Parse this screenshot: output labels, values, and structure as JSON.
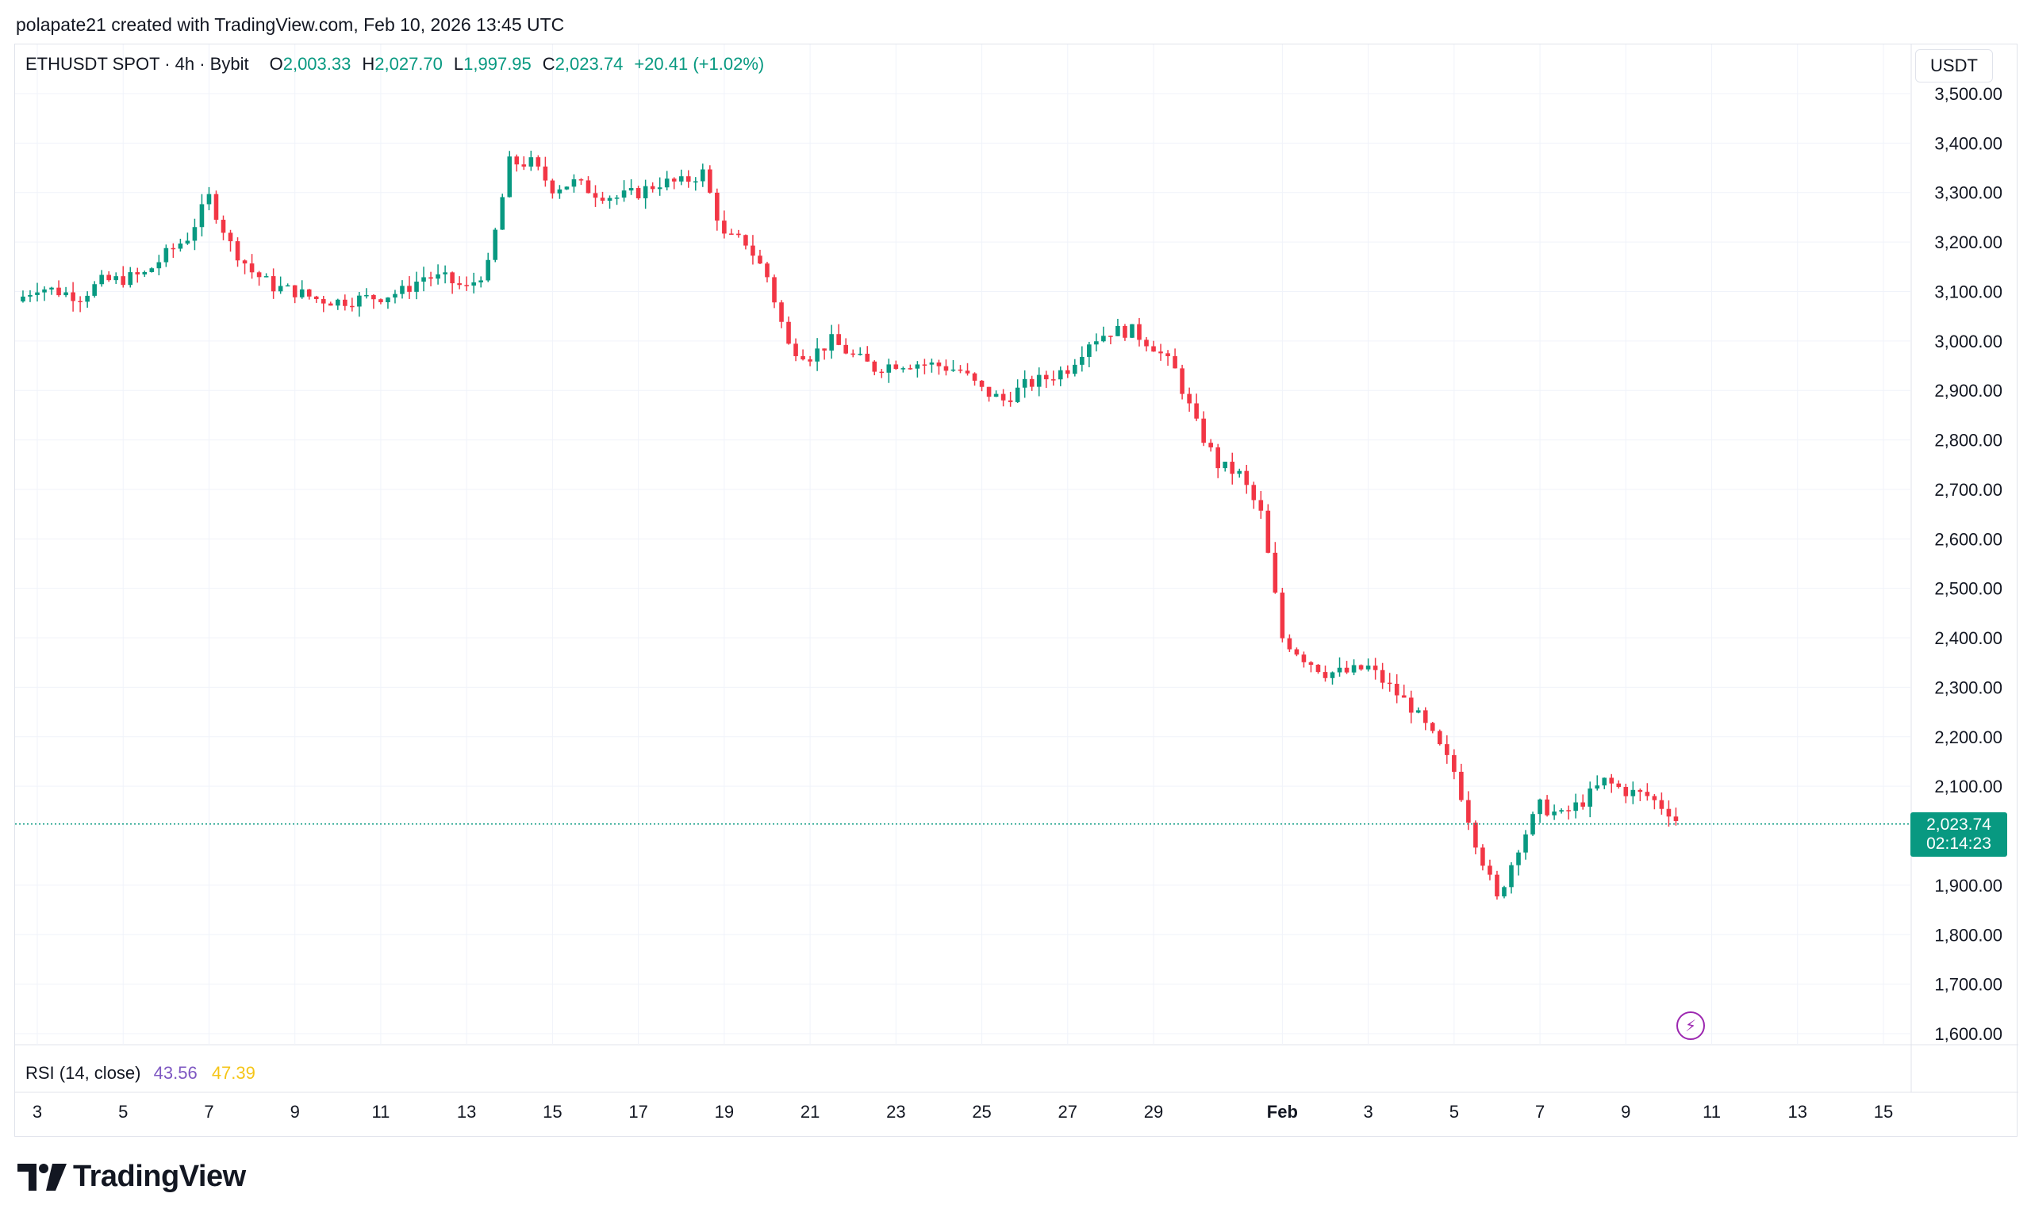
{
  "caption": "polapate21 created with TradingView.com, Feb 10, 2026 13:45 UTC",
  "legend": {
    "symbol": "ETHUSDT SPOT · 4h · Bybit",
    "open_label": "O",
    "open": "2,003.33",
    "high_label": "H",
    "high": "2,027.70",
    "low_label": "L",
    "low": "1,997.95",
    "close_label": "C",
    "close": "2,023.74",
    "change": "+20.41 (+1.02%)"
  },
  "currency_button": "USDT",
  "price_badge": {
    "price": "2,023.74",
    "countdown": "02:14:23"
  },
  "rsi_legend": {
    "label": "RSI (14, close)",
    "value": "43.56",
    "ma_value": "47.39"
  },
  "brand": {
    "text": "TradingView"
  },
  "icons": {
    "flash": "lightning-bolt-icon",
    "logo": "tradingview-logo-icon"
  },
  "colors": {
    "up": "#089981",
    "down": "#f23645",
    "grid": "#f0f3fa",
    "rsi_line": "#7e57c2",
    "rsi_ma": "#f5c518"
  },
  "chart_data": {
    "type": "candlestick",
    "timeframe": "4h",
    "ylim": [
      1600,
      3500
    ],
    "y_ticks": [
      "3,500.00",
      "3,400.00",
      "3,300.00",
      "3,200.00",
      "3,100.00",
      "3,000.00",
      "2,900.00",
      "2,800.00",
      "2,700.00",
      "2,600.00",
      "2,500.00",
      "2,400.00",
      "2,300.00",
      "2,200.00",
      "2,100.00",
      "1,900.00",
      "1,800.00",
      "1,700.00",
      "1,600.00"
    ],
    "y_tick_values": [
      3500,
      3400,
      3300,
      3200,
      3100,
      3000,
      2900,
      2800,
      2700,
      2600,
      2500,
      2400,
      2300,
      2200,
      2100,
      1900,
      1800,
      1700,
      1600
    ],
    "x_ticks": [
      {
        "label": "3",
        "day": 3
      },
      {
        "label": "5",
        "day": 5
      },
      {
        "label": "7",
        "day": 7
      },
      {
        "label": "9",
        "day": 9
      },
      {
        "label": "11",
        "day": 11
      },
      {
        "label": "13",
        "day": 13
      },
      {
        "label": "15",
        "day": 15
      },
      {
        "label": "17",
        "day": 17
      },
      {
        "label": "19",
        "day": 19
      },
      {
        "label": "21",
        "day": 21
      },
      {
        "label": "23",
        "day": 23
      },
      {
        "label": "25",
        "day": 25
      },
      {
        "label": "27",
        "day": 27
      },
      {
        "label": "29",
        "day": 29
      },
      {
        "label": "Feb",
        "day": 32,
        "bold": true
      },
      {
        "label": "3",
        "day": 34
      },
      {
        "label": "5",
        "day": 36
      },
      {
        "label": "7",
        "day": 38
      },
      {
        "label": "9",
        "day": 40
      },
      {
        "label": "11",
        "day": 42
      },
      {
        "label": "13",
        "day": 44
      },
      {
        "label": "15",
        "day": 46
      }
    ],
    "x_day_range": [
      2.5,
      47.5
    ],
    "last_price": 2023.74,
    "close_path": [
      [
        2.5,
        3080
      ],
      [
        3,
        3110
      ],
      [
        3.5,
        3100
      ],
      [
        4,
        3090
      ],
      [
        4.5,
        3120
      ],
      [
        5,
        3125
      ],
      [
        5.5,
        3135
      ],
      [
        6,
        3175
      ],
      [
        6.5,
        3210
      ],
      [
        7,
        3290
      ],
      [
        7.5,
        3195
      ],
      [
        8,
        3140
      ],
      [
        8.5,
        3110
      ],
      [
        9,
        3100
      ],
      [
        9.5,
        3085
      ],
      [
        10,
        3080
      ],
      [
        10.5,
        3085
      ],
      [
        11,
        3090
      ],
      [
        11.5,
        3100
      ],
      [
        12,
        3130
      ],
      [
        12.5,
        3125
      ],
      [
        13,
        3105
      ],
      [
        13.5,
        3150
      ],
      [
        14,
        3360
      ],
      [
        14.5,
        3360
      ],
      [
        15,
        3310
      ],
      [
        15.5,
        3320
      ],
      [
        16,
        3300
      ],
      [
        16.5,
        3290
      ],
      [
        17,
        3300
      ],
      [
        17.5,
        3320
      ],
      [
        18,
        3320
      ],
      [
        18.5,
        3340
      ],
      [
        19,
        3210
      ],
      [
        19.5,
        3200
      ],
      [
        20,
        3130
      ],
      [
        20.5,
        2990
      ],
      [
        21,
        2970
      ],
      [
        21.5,
        3000
      ],
      [
        22,
        2970
      ],
      [
        22.5,
        2945
      ],
      [
        23,
        2955
      ],
      [
        23.5,
        2955
      ],
      [
        24,
        2950
      ],
      [
        24.5,
        2940
      ],
      [
        25,
        2900
      ],
      [
        25.5,
        2880
      ],
      [
        26,
        2910
      ],
      [
        26.5,
        2925
      ],
      [
        27,
        2945
      ],
      [
        27.5,
        3000
      ],
      [
        28,
        3020
      ],
      [
        28.5,
        3020
      ],
      [
        29,
        2990
      ],
      [
        29.5,
        2940
      ],
      [
        30,
        2830
      ],
      [
        30.5,
        2750
      ],
      [
        31,
        2730
      ],
      [
        31.5,
        2650
      ],
      [
        32,
        2400
      ],
      [
        32.5,
        2360
      ],
      [
        33,
        2330
      ],
      [
        33.5,
        2330
      ],
      [
        34,
        2340
      ],
      [
        34.5,
        2300
      ],
      [
        35,
        2260
      ],
      [
        35.5,
        2200
      ],
      [
        36,
        2130
      ],
      [
        36.5,
        1990
      ],
      [
        37,
        1870
      ],
      [
        37.5,
        1980
      ],
      [
        38,
        2060
      ],
      [
        38.5,
        2040
      ],
      [
        39,
        2070
      ],
      [
        39.5,
        2110
      ],
      [
        40,
        2090
      ],
      [
        40.5,
        2080
      ],
      [
        41,
        2050
      ],
      [
        41.25,
        2023.74
      ]
    ]
  }
}
